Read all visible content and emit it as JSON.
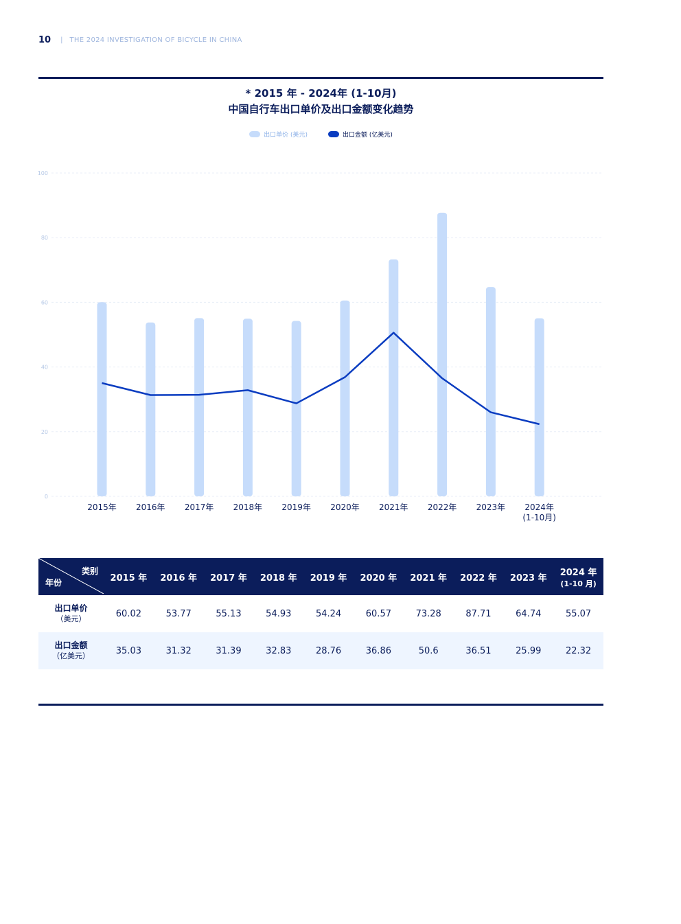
{
  "header": {
    "page_number": "10",
    "separator": "|",
    "title": "THE 2024 INVESTIGATION OF BICYCLE IN CHINA"
  },
  "chart_title": {
    "line1": "* 2015 年 - 2024年 (1-10月)",
    "line2": "中国自行车出口单价及出口金额变化趋势"
  },
  "legend": {
    "bar_label": "出口单价 (美元)",
    "line_label": "出口金额 (亿美元)"
  },
  "colors": {
    "bar": "#c6dcfb",
    "line": "#0a3cc0",
    "navy": "#0b1d5b",
    "grid": "#e8eef7"
  },
  "chart_data": {
    "type": "bar",
    "categories": [
      "2015年",
      "2016年",
      "2017年",
      "2018年",
      "2019年",
      "2020年",
      "2021年",
      "2022年",
      "2023年",
      "2024年\n(1-10月)"
    ],
    "series": [
      {
        "name": "出口单价 (美元)",
        "type": "bar",
        "values": [
          60.02,
          53.77,
          55.13,
          54.93,
          54.24,
          60.57,
          73.28,
          87.71,
          64.74,
          55.07
        ]
      },
      {
        "name": "出口金额 (亿美元)",
        "type": "line",
        "values": [
          35.03,
          31.32,
          31.39,
          32.83,
          28.76,
          36.86,
          50.6,
          36.51,
          25.99,
          22.32
        ]
      }
    ],
    "y_ticks": [
      "0",
      "20",
      "40",
      "60",
      "80",
      "100"
    ],
    "ylim": [
      0,
      100
    ],
    "grid": true,
    "legend_position": "top-center"
  },
  "table": {
    "corner_top": "类别",
    "corner_bottom": "年份",
    "columns": [
      {
        "main": "2015 年",
        "sub": ""
      },
      {
        "main": "2016 年",
        "sub": ""
      },
      {
        "main": "2017 年",
        "sub": ""
      },
      {
        "main": "2018 年",
        "sub": ""
      },
      {
        "main": "2019 年",
        "sub": ""
      },
      {
        "main": "2020 年",
        "sub": ""
      },
      {
        "main": "2021 年",
        "sub": ""
      },
      {
        "main": "2022 年",
        "sub": ""
      },
      {
        "main": "2023 年",
        "sub": ""
      },
      {
        "main": "2024 年",
        "sub": "(1-10 月)"
      }
    ],
    "rows": [
      {
        "label": "出口单价",
        "unit": "（美元）",
        "values": [
          "60.02",
          "53.77",
          "55.13",
          "54.93",
          "54.24",
          "60.57",
          "73.28",
          "87.71",
          "64.74",
          "55.07"
        ]
      },
      {
        "label": "出口金额",
        "unit": "（亿美元）",
        "values": [
          "35.03",
          "31.32",
          "31.39",
          "32.83",
          "28.76",
          "36.86",
          "50.6",
          "36.51",
          "25.99",
          "22.32"
        ]
      }
    ]
  }
}
